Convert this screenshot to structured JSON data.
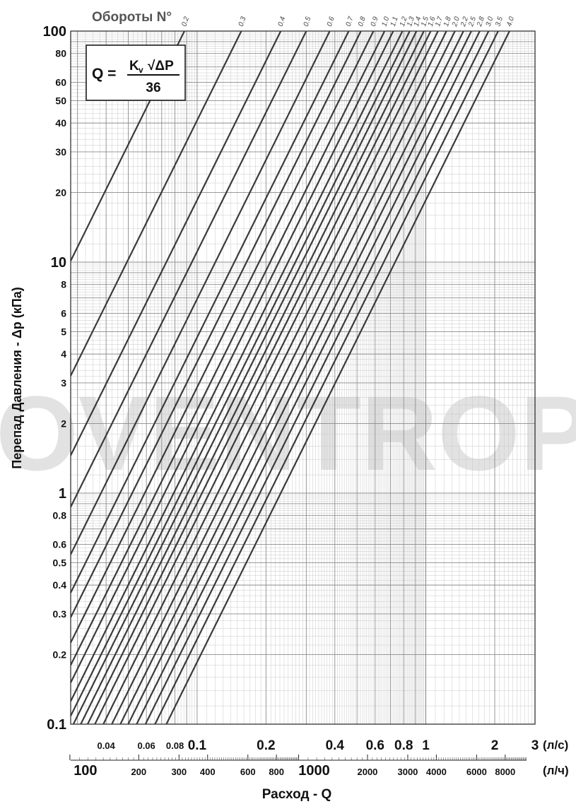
{
  "chart_data": {
    "type": "line",
    "title": "Обороты N°",
    "xlabel": "Расход - Q",
    "ylabel": "Перепад Давления  - Δp (кПа)",
    "formula": {
      "lhs": "Q =",
      "numerator_k": "K",
      "numerator_sub": "v",
      "numerator_root": "√ΔP",
      "denominator": "36"
    },
    "x_scale": "log",
    "y_scale": "log",
    "xlim_ls": [
      0.028,
      3
    ],
    "ylim_kpa": [
      0.1,
      100
    ],
    "grid": true,
    "watermark": "OVENTROP",
    "x_unit_primary": "(л/с)",
    "x_unit_secondary": "(л/ч)",
    "y_ticks": [
      "100",
      "80",
      "60",
      "50",
      "40",
      "30",
      "20",
      "10",
      "8",
      "6",
      "5",
      "4",
      "3",
      "2",
      "1",
      "0.8",
      "0.6",
      "0.5",
      "0.4",
      "0.3",
      "0.2",
      "0.1"
    ],
    "y_tick_values": [
      100,
      80,
      60,
      50,
      40,
      30,
      20,
      10,
      8,
      6,
      5,
      4,
      3,
      2,
      1,
      0.8,
      0.6,
      0.5,
      0.4,
      0.3,
      0.2,
      0.1
    ],
    "x_ticks_ls": [
      "0.04",
      "0.06",
      "0.08",
      "0.1",
      "0.2",
      "0.4",
      "0.6",
      "0.8",
      "1",
      "2",
      "3"
    ],
    "x_tick_values_ls": [
      0.04,
      0.06,
      0.08,
      0.1,
      0.2,
      0.4,
      0.6,
      0.8,
      1,
      2,
      3
    ],
    "x_ticks_lh": [
      "100",
      "200",
      "300",
      "400",
      "600",
      "800",
      "1000",
      "2000",
      "3000",
      "4000",
      "6000",
      "8000"
    ],
    "x_tick_values_lh": [
      100,
      200,
      300,
      400,
      600,
      800,
      1000,
      2000,
      3000,
      4000,
      6000,
      8000
    ],
    "series": [
      {
        "name": "0.2",
        "q_at_100kpa_ls": 0.088
      },
      {
        "name": "0.3",
        "q_at_100kpa_ls": 0.156
      },
      {
        "name": "0.4",
        "q_at_100kpa_ls": 0.232
      },
      {
        "name": "0.5",
        "q_at_100kpa_ls": 0.3
      },
      {
        "name": "0.6",
        "q_at_100kpa_ls": 0.38
      },
      {
        "name": "0.7",
        "q_at_100kpa_ls": 0.46
      },
      {
        "name": "0.8",
        "q_at_100kpa_ls": 0.52
      },
      {
        "name": "0.9",
        "q_at_100kpa_ls": 0.59
      },
      {
        "name": "1.0",
        "q_at_100kpa_ls": 0.66
      },
      {
        "name": "1.1",
        "q_at_100kpa_ls": 0.72
      },
      {
        "name": "1.2",
        "q_at_100kpa_ls": 0.79
      },
      {
        "name": "1.3",
        "q_at_100kpa_ls": 0.85
      },
      {
        "name": "1.4",
        "q_at_100kpa_ls": 0.91
      },
      {
        "name": "1.5",
        "q_at_100kpa_ls": 0.98
      },
      {
        "name": "1.6",
        "q_at_100kpa_ls": 1.05
      },
      {
        "name": "1.7",
        "q_at_100kpa_ls": 1.13
      },
      {
        "name": "1.8",
        "q_at_100kpa_ls": 1.23
      },
      {
        "name": "2.0",
        "q_at_100kpa_ls": 1.34
      },
      {
        "name": "2.2",
        "q_at_100kpa_ls": 1.46
      },
      {
        "name": "2.5",
        "q_at_100kpa_ls": 1.58
      },
      {
        "name": "2.8",
        "q_at_100kpa_ls": 1.72
      },
      {
        "name": "3.0",
        "q_at_100kpa_ls": 1.88
      },
      {
        "name": "3.5",
        "q_at_100kpa_ls": 2.07
      },
      {
        "name": "4.0",
        "q_at_100kpa_ls": 2.32
      }
    ]
  }
}
